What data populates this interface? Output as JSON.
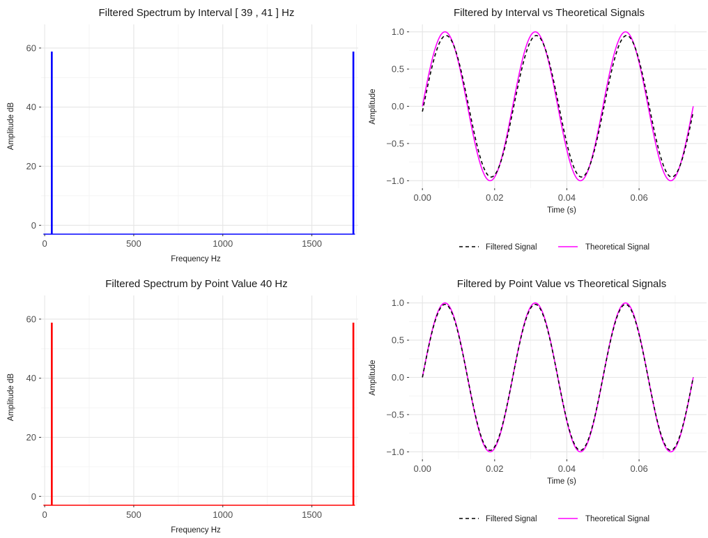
{
  "chart_data": [
    {
      "type": "bar",
      "title": "Filtered Spectrum by Interval [ 39 , 41 ] Hz",
      "xlabel": "Frequency Hz",
      "ylabel": "Amplitude dB",
      "xlim": [
        -20,
        1760
      ],
      "ylim": [
        -3,
        68
      ],
      "x_ticks": [
        0,
        500,
        1000,
        1500
      ],
      "y_ticks": [
        0,
        20,
        40,
        60
      ],
      "grid": true,
      "color": "#0000ff",
      "baseline": -3,
      "series": [
        {
          "x": [
            40,
            1733
          ],
          "values": [
            58.8,
            58.8
          ]
        }
      ]
    },
    {
      "type": "line",
      "title": "Filtered by Interval vs Theoretical Signals",
      "xlabel": "Time (s)",
      "ylabel": "Amplitude",
      "xlim": [
        -0.0037,
        0.0787
      ],
      "ylim": [
        -1.1,
        1.1
      ],
      "x_ticks": [
        0.0,
        0.02,
        0.04,
        0.06
      ],
      "y_ticks": [
        -1.0,
        -0.5,
        0.0,
        0.5,
        1.0
      ],
      "x_tick_labels": [
        "0.00",
        "0.02",
        "0.04",
        "0.06"
      ],
      "y_tick_labels": [
        "−1.0",
        "−0.5",
        "0.0",
        "0.5",
        "1.0"
      ],
      "grid": true,
      "legend_position": "bottom",
      "series": [
        {
          "name": "Filtered Signal",
          "color": "#000000",
          "dash": "dashed",
          "amplitude": 0.95,
          "frequency_hz": 40,
          "phase_lag_s": 0.0003,
          "x_start": 0,
          "x_end": 0.075
        },
        {
          "name": "Theoretical Signal",
          "color": "#ff00ff",
          "dash": "solid",
          "amplitude": 1.0,
          "frequency_hz": 40,
          "phase_lag_s": 0,
          "x_start": 0,
          "x_end": 0.075
        }
      ]
    },
    {
      "type": "bar",
      "title": "Filtered Spectrum by Point Value  40 Hz",
      "xlabel": "Frequency Hz",
      "ylabel": "Amplitude dB",
      "xlim": [
        -20,
        1760
      ],
      "ylim": [
        -3,
        68
      ],
      "x_ticks": [
        0,
        500,
        1000,
        1500
      ],
      "y_ticks": [
        0,
        20,
        40,
        60
      ],
      "grid": true,
      "color": "#ff0000",
      "baseline": -3,
      "series": [
        {
          "x": [
            40,
            1733
          ],
          "values": [
            58.8,
            58.8
          ]
        }
      ]
    },
    {
      "type": "line",
      "title": "Filtered by Point Value vs Theoretical Signals",
      "xlabel": "Time (s)",
      "ylabel": "Amplitude",
      "xlim": [
        -0.0037,
        0.0787
      ],
      "ylim": [
        -1.1,
        1.1
      ],
      "x_ticks": [
        0.0,
        0.02,
        0.04,
        0.06
      ],
      "y_ticks": [
        -1.0,
        -0.5,
        0.0,
        0.5,
        1.0
      ],
      "x_tick_labels": [
        "0.00",
        "0.02",
        "0.04",
        "0.06"
      ],
      "y_tick_labels": [
        "−1.0",
        "−0.5",
        "0.0",
        "0.5",
        "1.0"
      ],
      "grid": true,
      "legend_position": "bottom",
      "series": [
        {
          "name": "Filtered Signal",
          "color": "#000000",
          "dash": "dashed",
          "amplitude": 0.98,
          "frequency_hz": 40,
          "phase_lag_s": 0,
          "x_start": 0,
          "x_end": 0.075
        },
        {
          "name": "Theoretical Signal",
          "color": "#ff00ff",
          "dash": "solid",
          "amplitude": 1.0,
          "frequency_hz": 40,
          "phase_lag_s": 0,
          "x_start": 0,
          "x_end": 0.075
        }
      ]
    }
  ]
}
